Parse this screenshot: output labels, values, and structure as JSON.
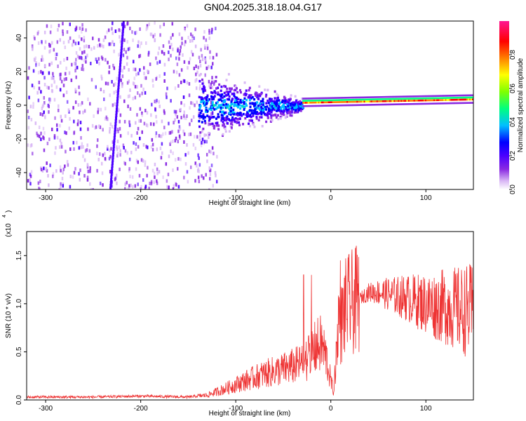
{
  "title": "GN04.2025.318.18.04.G17",
  "chart_data": [
    {
      "type": "heatmap",
      "xlabel": "Height of straight line (km)",
      "ylabel": "Frequency (Hz)",
      "xlim": [
        -320,
        150
      ],
      "ylim": [
        -50,
        50
      ],
      "xticks": [
        -300,
        -200,
        -100,
        0,
        100
      ],
      "yticks": [
        -40,
        -20,
        0,
        20,
        40
      ],
      "colorbar": {
        "label": "Normalized spectral amplitude",
        "range": [
          0,
          1
        ],
        "ticks": [
          "0.0",
          "0.2",
          "0.4",
          "0.6",
          "0.8"
        ],
        "colors": [
          "#ffffff",
          "#d9b8f5",
          "#8a2be2",
          "#4b00ff",
          "#0000ff",
          "#00bfff",
          "#00ff7f",
          "#7fff00",
          "#ffff00",
          "#ff7f00",
          "#ff0000",
          "#ff1493"
        ]
      },
      "features": {
        "noise_region_x": [
          -320,
          -140
        ],
        "transition_region_x": [
          -140,
          -30
        ],
        "narrow_band_x": [
          -30,
          150
        ],
        "band_center_hz": 1,
        "streak_x_at_ymax": -218,
        "streak_x_at_ymin": -232
      }
    },
    {
      "type": "line",
      "xlabel": "Height of straight line (km)",
      "ylabel": "SNR (10 * v/v)",
      "yunit_label": "(x10",
      "yunit_exp": "4",
      "xlim": [
        -320,
        150
      ],
      "ylim": [
        0,
        1.75
      ],
      "xticks": [
        -300,
        -200,
        -100,
        0,
        100
      ],
      "yticks": [
        "0.0",
        "0.5",
        "1.0",
        "1.5"
      ],
      "color": "#ee3333",
      "series": [
        {
          "x": [
            -320,
            -300,
            -250,
            -200,
            -150,
            -130,
            -110,
            -90,
            -70,
            -50,
            -30,
            -20,
            -15,
            -10,
            -5,
            0,
            3,
            6,
            8,
            10,
            15,
            20,
            30,
            40,
            50,
            60,
            70,
            80,
            90,
            100,
            110,
            120,
            130,
            140,
            150
          ],
          "y": [
            0.03,
            0.03,
            0.03,
            0.04,
            0.03,
            0.05,
            0.12,
            0.2,
            0.27,
            0.32,
            0.38,
            0.5,
            0.55,
            0.58,
            0.45,
            0.2,
            0.08,
            0.5,
            0.85,
            0.75,
            0.95,
            1.0,
            1.05,
            1.12,
            1.12,
            1.1,
            1.08,
            1.06,
            1.03,
            1.0,
            0.98,
            0.97,
            0.95,
            0.93,
            0.92
          ]
        }
      ]
    }
  ]
}
